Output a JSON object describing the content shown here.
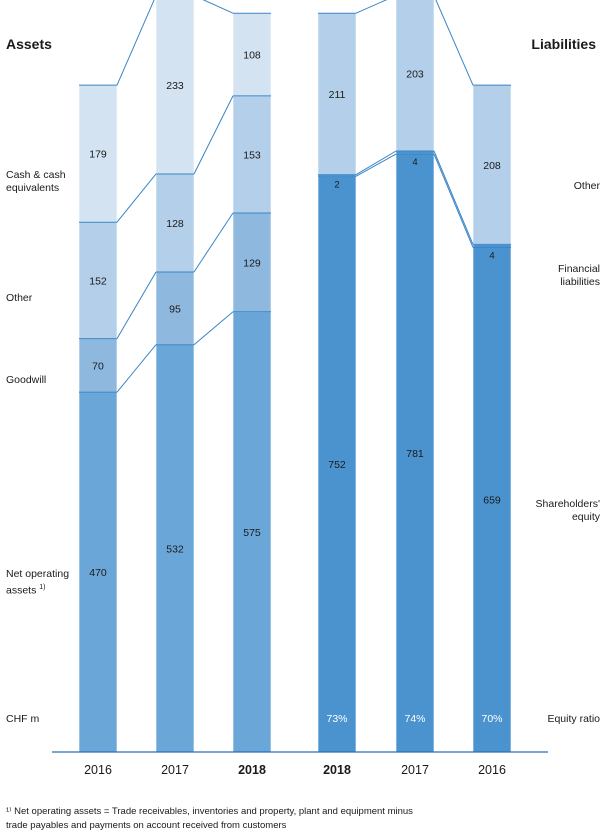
{
  "assets_heading": "Assets",
  "liabilities_heading": "Liabilities",
  "left_labels": {
    "cash": "Cash & cash\nequivalents",
    "other": "Other",
    "goodwill": "Goodwill",
    "noa": "Net operating\nassets",
    "noa_sup": "1)",
    "unit": "CHF m"
  },
  "right_labels": {
    "other": "Other",
    "financial": "Financial\nliabilities",
    "equity": "Shareholders'\nequity",
    "ratio": "Equity ratio"
  },
  "footnote": "¹⁾ Net operating assets = Trade receivables, inventories and property, plant and equipment minus\n                        trade payables and payments on account received from customers",
  "colors": {
    "cash": "#d3e3f2",
    "other_asset": "#b3cfe9",
    "goodwill": "#8fb8de",
    "noa": "#6aa7d8",
    "equity": "#4a93cf",
    "liab_other": "#b3cfe9",
    "connector": "#3a85c7",
    "axis": "#2a6fb5"
  },
  "chart_data": {
    "type": "bar",
    "stacked": true,
    "unit": "CHF m",
    "assets": {
      "categories": [
        "2016",
        "2017",
        "2018"
      ],
      "series": [
        {
          "name": "Net operating assets",
          "values": [
            470,
            532,
            575
          ]
        },
        {
          "name": "Goodwill",
          "values": [
            70,
            95,
            129
          ]
        },
        {
          "name": "Other",
          "values": [
            152,
            128,
            153
          ]
        },
        {
          "name": "Cash & cash equivalents",
          "values": [
            179,
            233,
            108
          ]
        }
      ]
    },
    "liabilities": {
      "categories": [
        "2018",
        "2017",
        "2016"
      ],
      "series": [
        {
          "name": "Shareholders' equity",
          "values": [
            752,
            781,
            659
          ]
        },
        {
          "name": "Financial liabilities",
          "values": [
            2,
            4,
            4
          ]
        },
        {
          "name": "Other",
          "values": [
            211,
            203,
            208
          ]
        }
      ],
      "equity_ratio": [
        "73%",
        "74%",
        "70%"
      ]
    },
    "bold_categories": [
      "2018"
    ]
  }
}
